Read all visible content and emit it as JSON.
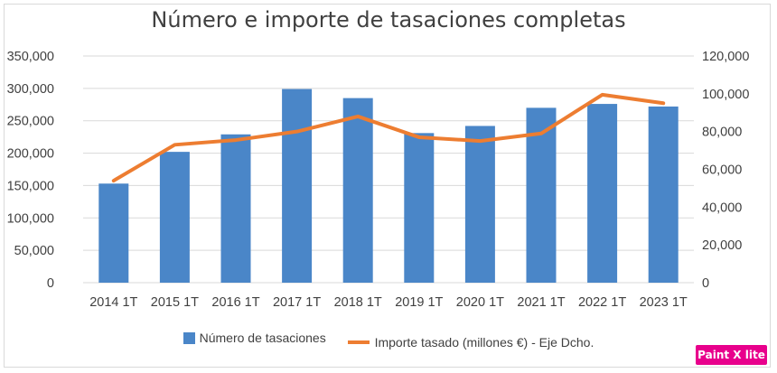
{
  "chart_data": {
    "type": "bar",
    "title": "Número e importe de tasaciones completas",
    "categories": [
      "2014 1T",
      "2015 1T",
      "2016 1T",
      "2017 1T",
      "2018 1T",
      "2019 1T",
      "2020 1T",
      "2021 1T",
      "2022 1T",
      "2023 1T"
    ],
    "series": [
      {
        "name": "Número de tasaciones",
        "type": "bar",
        "axis": "left",
        "color": "#4a86c8",
        "values": [
          153000,
          202000,
          229000,
          299000,
          285000,
          231000,
          242000,
          270000,
          276000,
          272000
        ]
      },
      {
        "name": "Importe tasado (millones €) - Eje Dcho.",
        "type": "line",
        "axis": "right",
        "color": "#ed7d31",
        "values": [
          54000,
          73000,
          75500,
          80000,
          88000,
          77000,
          75000,
          79000,
          99500,
          95000
        ]
      }
    ],
    "y_left": {
      "lim": [
        0,
        350000
      ],
      "ticks": [
        "0",
        "50,000",
        "100,000",
        "150,000",
        "200,000",
        "250,000",
        "300,000",
        "350,000"
      ]
    },
    "y_right": {
      "lim": [
        0,
        120000
      ],
      "ticks": [
        "0",
        "20,000",
        "40,000",
        "60,000",
        "80,000",
        "100,000",
        "120,000"
      ]
    },
    "grid": true,
    "legend_position": "bottom"
  },
  "badge": {
    "label": "Paint X lite"
  }
}
